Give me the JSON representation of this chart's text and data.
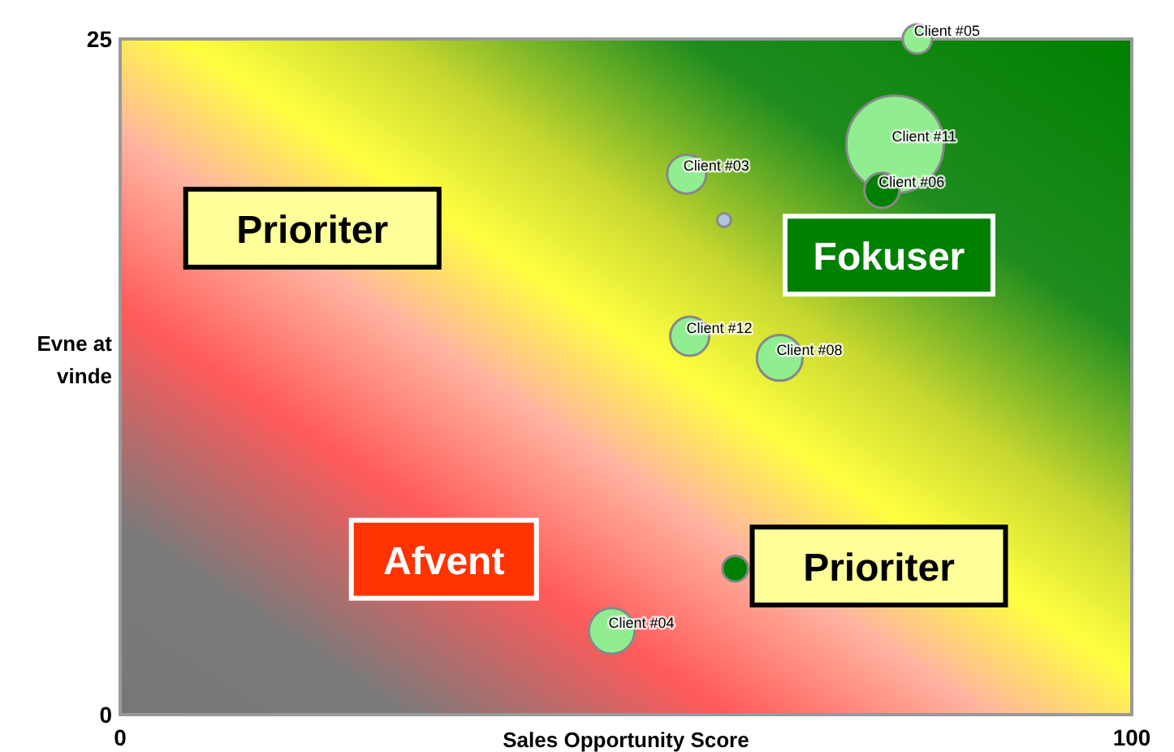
{
  "chart_data": {
    "type": "bubble",
    "xlabel": "Sales Opportunity Score",
    "ylabel": "Evne at vinde",
    "xlim": [
      0,
      100
    ],
    "ylim": [
      0,
      25
    ],
    "xticks": [
      0,
      100
    ],
    "yticks": [
      0,
      25
    ],
    "marker": "circle",
    "series": [
      {
        "x": [
          78.8,
          76.6,
          75.3,
          56.0,
          59.7,
          56.3,
          65.2,
          48.6,
          60.8
        ],
        "values": [
          25,
          21.1,
          19.4,
          20.0,
          18.3,
          14.0,
          13.2,
          3.1,
          5.4
        ],
        "sizes": [
          0.09,
          1,
          0.13,
          0.16,
          0.02,
          0.16,
          0.22,
          0.22,
          0.07
        ],
        "colors": [
          "#90ee90",
          "#90ee90",
          "#008000",
          "#90ee90",
          "#b0c4de",
          "#90ee90",
          "#90ee90",
          "#90ee90",
          "#008000"
        ]
      }
    ],
    "annotations": [
      "Prioriter",
      "Fokuser",
      "Afvent",
      "Prioriter",
      {
        "text": "Client #05",
        "x": 78.8,
        "y": 25
      },
      {
        "text": "Client #11",
        "x": 76.6,
        "y": 21.1
      },
      {
        "text": "Client #06",
        "x": 75.3,
        "y": 19.4
      },
      {
        "text": "Client #03",
        "x": 56.0,
        "y": 20.0
      },
      {
        "text": "Client #12",
        "x": 56.3,
        "y": 14.0
      },
      {
        "text": "Client #08",
        "x": 65.2,
        "y": 13.2
      },
      {
        "text": "Client #04",
        "x": 48.6,
        "y": 3.1
      }
    ]
  }
}
